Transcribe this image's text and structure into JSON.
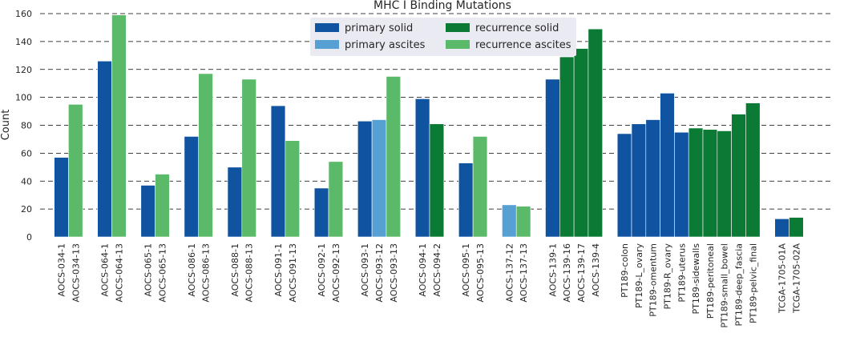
{
  "chart_data": {
    "type": "bar",
    "title": "MHC I Binding Mutations",
    "xlabel": "",
    "ylabel": "Count",
    "ylim": [
      0,
      160
    ],
    "yticks": [
      0,
      20,
      40,
      60,
      80,
      100,
      120,
      140,
      160
    ],
    "grid": true,
    "legend_position": "top-center",
    "series_colors": {
      "primary solid": "#1054a1",
      "primary ascites": "#56a0d3",
      "recurrence solid": "#0a7a35",
      "recurrence ascites": "#5bb96a"
    },
    "legend": [
      {
        "label": "primary solid",
        "color": "#1054a1"
      },
      {
        "label": "recurrence solid",
        "color": "#0a7a35"
      },
      {
        "label": "primary ascites",
        "color": "#56a0d3"
      },
      {
        "label": "recurrence ascites",
        "color": "#5bb96a"
      }
    ],
    "groups": [
      {
        "bars": [
          {
            "label": "AOCS-034-1",
            "value": 57,
            "series": "primary solid"
          },
          {
            "label": "AOCS-034-13",
            "value": 95,
            "series": "recurrence ascites"
          }
        ]
      },
      {
        "bars": [
          {
            "label": "AOCS-064-1",
            "value": 126,
            "series": "primary solid"
          },
          {
            "label": "AOCS-064-13",
            "value": 159,
            "series": "recurrence ascites"
          }
        ]
      },
      {
        "bars": [
          {
            "label": "AOCS-065-1",
            "value": 37,
            "series": "primary solid"
          },
          {
            "label": "AOCS-065-13",
            "value": 45,
            "series": "recurrence ascites"
          }
        ]
      },
      {
        "bars": [
          {
            "label": "AOCS-086-1",
            "value": 72,
            "series": "primary solid"
          },
          {
            "label": "AOCS-086-13",
            "value": 117,
            "series": "recurrence ascites"
          }
        ]
      },
      {
        "bars": [
          {
            "label": "AOCS-088-1",
            "value": 50,
            "series": "primary solid"
          },
          {
            "label": "AOCS-088-13",
            "value": 113,
            "series": "recurrence ascites"
          }
        ]
      },
      {
        "bars": [
          {
            "label": "AOCS-091-1",
            "value": 94,
            "series": "primary solid"
          },
          {
            "label": "AOCS-091-13",
            "value": 69,
            "series": "recurrence ascites"
          }
        ]
      },
      {
        "bars": [
          {
            "label": "AOCS-092-1",
            "value": 35,
            "series": "primary solid"
          },
          {
            "label": "AOCS-092-13",
            "value": 54,
            "series": "recurrence ascites"
          }
        ]
      },
      {
        "bars": [
          {
            "label": "AOCS-093-1",
            "value": 83,
            "series": "primary solid"
          },
          {
            "label": "AOCS-093-12",
            "value": 84,
            "series": "primary ascites"
          },
          {
            "label": "AOCS-093-13",
            "value": 115,
            "series": "recurrence ascites"
          }
        ]
      },
      {
        "bars": [
          {
            "label": "AOCS-094-1",
            "value": 99,
            "series": "primary solid"
          },
          {
            "label": "AOCS-094-2",
            "value": 81,
            "series": "recurrence solid"
          }
        ]
      },
      {
        "bars": [
          {
            "label": "AOCS-095-1",
            "value": 53,
            "series": "primary solid"
          },
          {
            "label": "AOCS-095-13",
            "value": 72,
            "series": "recurrence ascites"
          }
        ]
      },
      {
        "bars": [
          {
            "label": "AOCS-137-12",
            "value": 23,
            "series": "primary ascites"
          },
          {
            "label": "AOCS-137-13",
            "value": 22,
            "series": "recurrence ascites"
          }
        ]
      },
      {
        "bars": [
          {
            "label": "AOCS-139-1",
            "value": 113,
            "series": "primary solid"
          },
          {
            "label": "AOCS-139-16",
            "value": 129,
            "series": "recurrence solid"
          },
          {
            "label": "AOCS-139-17",
            "value": 135,
            "series": "recurrence solid"
          },
          {
            "label": "AOCS-139-4",
            "value": 149,
            "series": "recurrence solid"
          }
        ]
      },
      {
        "bars": [
          {
            "label": "PT189-colon",
            "value": 74,
            "series": "primary solid"
          },
          {
            "label": "PT189-L_ovary",
            "value": 81,
            "series": "primary solid"
          },
          {
            "label": "PT189-omentum",
            "value": 84,
            "series": "primary solid"
          },
          {
            "label": "PT189-R_ovary",
            "value": 103,
            "series": "primary solid"
          },
          {
            "label": "PT189-uterus",
            "value": 75,
            "series": "primary solid"
          },
          {
            "label": "PT189-sidewalls",
            "value": 78,
            "series": "recurrence solid"
          },
          {
            "label": "PT189-peritoneal",
            "value": 77,
            "series": "recurrence solid"
          },
          {
            "label": "PT189-small_bowel",
            "value": 76,
            "series": "recurrence solid"
          },
          {
            "label": "PT189-deep_fascia",
            "value": 88,
            "series": "recurrence solid"
          },
          {
            "label": "PT189-pelvic_final",
            "value": 96,
            "series": "recurrence solid"
          }
        ]
      },
      {
        "bars": [
          {
            "label": "TCGA-1705-01A",
            "value": 13,
            "series": "primary solid"
          },
          {
            "label": "TCGA-1705-02A",
            "value": 14,
            "series": "recurrence solid"
          }
        ]
      }
    ]
  }
}
